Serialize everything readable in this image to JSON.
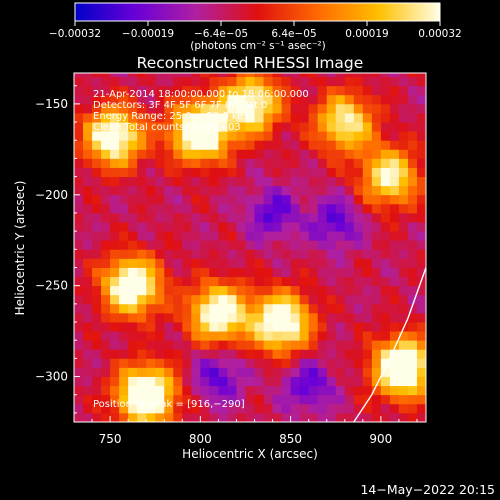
{
  "chart_data": {
    "type": "heatmap",
    "title": "Reconstructed RHESSI Image",
    "xlabel": "Heliocentric X (arcsec)",
    "ylabel": "Heliocentric Y (arcsec)",
    "xlim": [
      730,
      925
    ],
    "ylim": [
      -325,
      -133
    ],
    "x_ticks": [
      750,
      800,
      850,
      900
    ],
    "y_ticks": [
      -150,
      -200,
      -250,
      -300
    ],
    "x_tick_labels": [
      "750",
      "800",
      "850",
      "900"
    ],
    "y_tick_labels": [
      "−150",
      "−200",
      "−250",
      "−300"
    ],
    "colorbar": {
      "range": [
        -0.00032,
        0.00032
      ],
      "tick_labels": [
        "−0.00032",
        "−0.00019",
        "−6.4e−05",
        "6.4e−05",
        "0.00019",
        "0.00032"
      ],
      "units_label": "(photons cm⁻² s⁻¹ asec⁻²)",
      "colors": [
        "#0000c8",
        "#6a00d8",
        "#b020a0",
        "#e01010",
        "#ff6a00",
        "#ffc000",
        "#ffffe8"
      ]
    },
    "annotations": [
      "21-Apr-2014 18:00:00.000 to 18:06:00.000",
      "Detectors: 3F 4F 5F 6F 7F 8F, Att 0",
      "Energy Range: 25.0 − 50.0 keV",
      "Clean    Total counts: 9.85E+03"
    ],
    "peak_label": "Position of peak = [916,−290]",
    "peak": [
      916,
      -290
    ],
    "hot_spots": [
      {
        "x": 800,
        "y": -165,
        "intensity": 1.0
      },
      {
        "x": 828,
        "y": -150,
        "intensity": 0.8
      },
      {
        "x": 752,
        "y": -168,
        "intensity": 0.85
      },
      {
        "x": 770,
        "y": -310,
        "intensity": 1.0
      },
      {
        "x": 810,
        "y": -265,
        "intensity": 0.85
      },
      {
        "x": 845,
        "y": -270,
        "intensity": 0.9
      },
      {
        "x": 762,
        "y": -250,
        "intensity": 0.9
      },
      {
        "x": 912,
        "y": -295,
        "intensity": 1.0
      },
      {
        "x": 905,
        "y": -190,
        "intensity": 0.7
      },
      {
        "x": 880,
        "y": -160,
        "intensity": 0.7
      }
    ],
    "cold_spots": [
      {
        "x": 875,
        "y": -215
      },
      {
        "x": 840,
        "y": -210
      },
      {
        "x": 810,
        "y": -300
      },
      {
        "x": 860,
        "y": -305
      }
    ],
    "limb_curve": [
      [
        885,
        -325
      ],
      [
        895,
        -310
      ],
      [
        905,
        -290
      ],
      [
        915,
        -268
      ],
      [
        925,
        -240
      ]
    ]
  },
  "footer": {
    "date": "14−May−2022 20:15"
  }
}
